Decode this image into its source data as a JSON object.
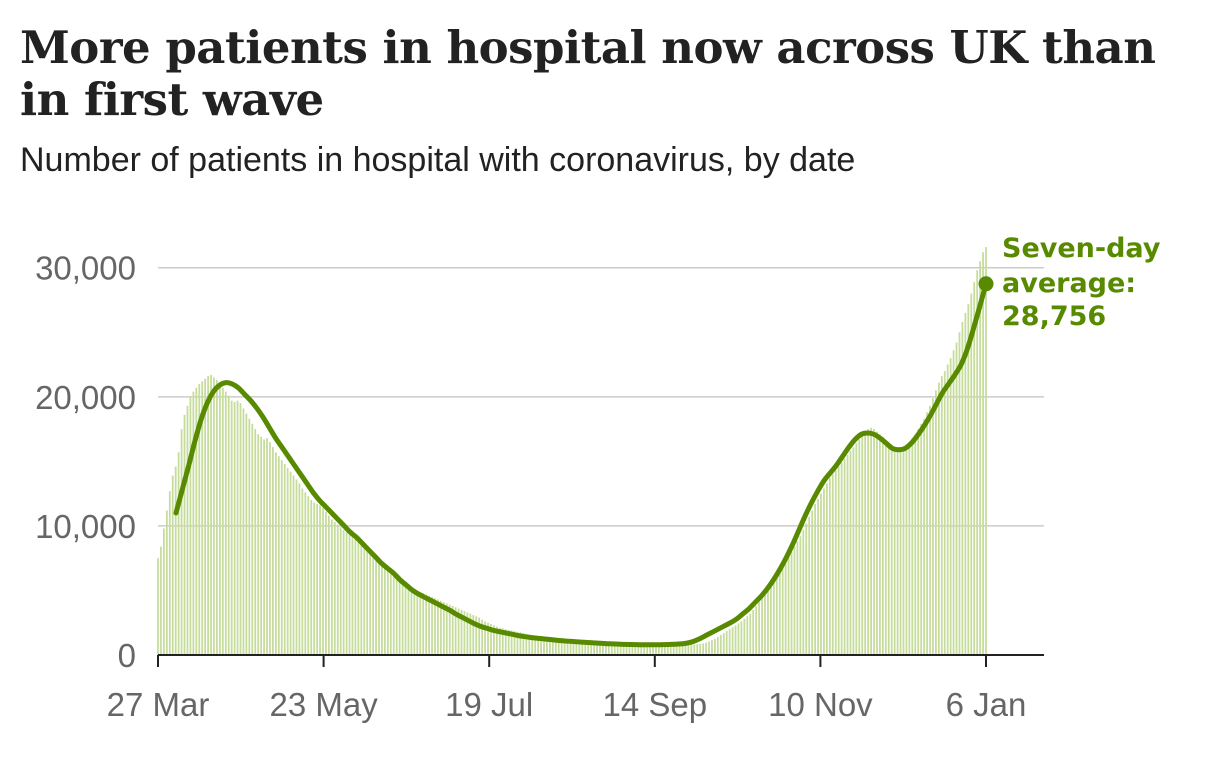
{
  "title": "More patients in hospital now across UK than in first wave",
  "subtitle": "Number of patients in hospital with coronavirus, by date",
  "chart_data": {
    "type": "bar",
    "ylim": [
      0,
      33000
    ],
    "yticks": [
      {
        "value": 0,
        "label": "0"
      },
      {
        "value": 10000,
        "label": "10,000"
      },
      {
        "value": 20000,
        "label": "20,000"
      },
      {
        "value": 30000,
        "label": "30,000"
      }
    ],
    "xticks": [
      "27 Mar",
      "23 May",
      "19 Jul",
      "14 Sep",
      "10 Nov",
      "6 Jan"
    ],
    "grid": true,
    "daily_bar_color": "#c5dc9b",
    "average_line_color": "#588a00",
    "series": [
      {
        "values": [
          7500,
          8400,
          9800,
          11200,
          12700,
          13900,
          14600,
          15700,
          17500,
          18600,
          19300,
          20000,
          20400,
          20700,
          21000,
          21200,
          21400,
          21600,
          21700,
          21500,
          21300,
          21000,
          20700,
          20400,
          20100,
          19700,
          19600,
          19700,
          19500,
          19100,
          18700,
          18300,
          17900,
          17500,
          17100,
          16900,
          16700,
          16800,
          16500,
          16100,
          15700,
          15400,
          15100,
          14800,
          14500,
          14200,
          13900,
          13600,
          13300,
          12900,
          12600,
          12300,
          12000,
          11800,
          11700,
          11600,
          11400,
          11100,
          10800,
          10500,
          10300,
          10100,
          9900,
          9700,
          9500,
          9300,
          9200,
          9100,
          9000,
          8800,
          8500,
          8100,
          7800,
          7500,
          7300,
          7200,
          7100,
          7000,
          6800,
          6600,
          6400,
          6300,
          6100,
          5900,
          5700,
          5500,
          5300,
          5100,
          5000,
          4900,
          4800,
          4700,
          4600,
          4500,
          4400,
          4300,
          4200,
          4100,
          4000,
          3900,
          3800,
          3700,
          3600,
          3500,
          3400,
          3300,
          3200,
          3100,
          3000,
          2900,
          2750,
          2600,
          2500,
          2400,
          2300,
          2200,
          2100,
          2050,
          2000,
          1950,
          1900,
          1850,
          1800,
          1750,
          1700,
          1650,
          1600,
          1550,
          1500,
          1450,
          1400,
          1380,
          1350,
          1330,
          1300,
          1280,
          1250,
          1230,
          1200,
          1180,
          1150,
          1120,
          1100,
          1080,
          1050,
          1030,
          1000,
          990,
          980,
          960,
          950,
          940,
          930,
          920,
          910,
          900,
          890,
          880,
          870,
          860,
          850,
          840,
          830,
          820,
          810,
          800,
          800,
          790,
          790,
          780,
          780,
          780,
          780,
          770,
          770,
          770,
          770,
          780,
          780,
          790,
          800,
          810,
          820,
          840,
          860,
          900,
          960,
          1050,
          1150,
          1250,
          1400,
          1550,
          1700,
          1850,
          2000,
          2150,
          2300,
          2450,
          2600,
          2800,
          3000,
          3200,
          3500,
          3800,
          4100,
          4400,
          4700,
          5000,
          5300,
          5600,
          6000,
          6400,
          6800,
          7200,
          7600,
          8000,
          8400,
          8800,
          9200,
          9700,
          10200,
          10700,
          11200,
          11700,
          12100,
          12500,
          12900,
          13300,
          13700,
          14000,
          14300,
          14600,
          14900,
          15200,
          15500,
          15800,
          16100,
          16400,
          16700,
          17000,
          17300,
          17500,
          17600,
          17500,
          17300,
          17100,
          16900,
          16600,
          16300,
          16200,
          16100,
          16000,
          16000,
          16100,
          16300,
          16500,
          16800,
          17100,
          17500,
          17900,
          18300,
          18800,
          19300,
          19900,
          20500,
          21100,
          21600,
          22000,
          22500,
          23000,
          23600,
          24200,
          25000,
          25800,
          26500,
          27200,
          28000,
          28900,
          29800,
          30500,
          31200,
          31600
        ]
      },
      {
        "name": "Seven-day average",
        "values": [
          11000,
          12800,
          14600,
          16500,
          18200,
          19500,
          20400,
          20900,
          21100,
          21000,
          20700,
          20200,
          19700,
          19100,
          18400,
          17600,
          16800,
          16100,
          15400,
          14700,
          14000,
          13300,
          12600,
          12000,
          11500,
          11000,
          10500,
          10000,
          9500,
          9100,
          8600,
          8100,
          7600,
          7100,
          6700,
          6300,
          5800,
          5400,
          5000,
          4700,
          4450,
          4200,
          3950,
          3700,
          3450,
          3150,
          2900,
          2650,
          2400,
          2200,
          2050,
          1900,
          1800,
          1700,
          1600,
          1500,
          1420,
          1350,
          1300,
          1250,
          1200,
          1150,
          1100,
          1070,
          1040,
          1000,
          970,
          940,
          910,
          880,
          860,
          840,
          820,
          810,
          800,
          790,
          790,
          790,
          800,
          810,
          830,
          860,
          920,
          1050,
          1250,
          1500,
          1750,
          2000,
          2250,
          2500,
          2800,
          3200,
          3600,
          4100,
          4600,
          5200,
          5900,
          6700,
          7600,
          8600,
          9700,
          10800,
          11800,
          12700,
          13500,
          14100,
          14700,
          15400,
          16100,
          16700,
          17100,
          17200,
          17100,
          16800,
          16400,
          16000,
          15900,
          16000,
          16400,
          17000,
          17700,
          18500,
          19400,
          20300,
          21000,
          21700,
          22500,
          23700,
          25300,
          27000,
          28756
        ]
      }
    ],
    "annotation": {
      "lines": [
        "Seven-day",
        "average:",
        "28,756"
      ],
      "value": 28756
    }
  }
}
